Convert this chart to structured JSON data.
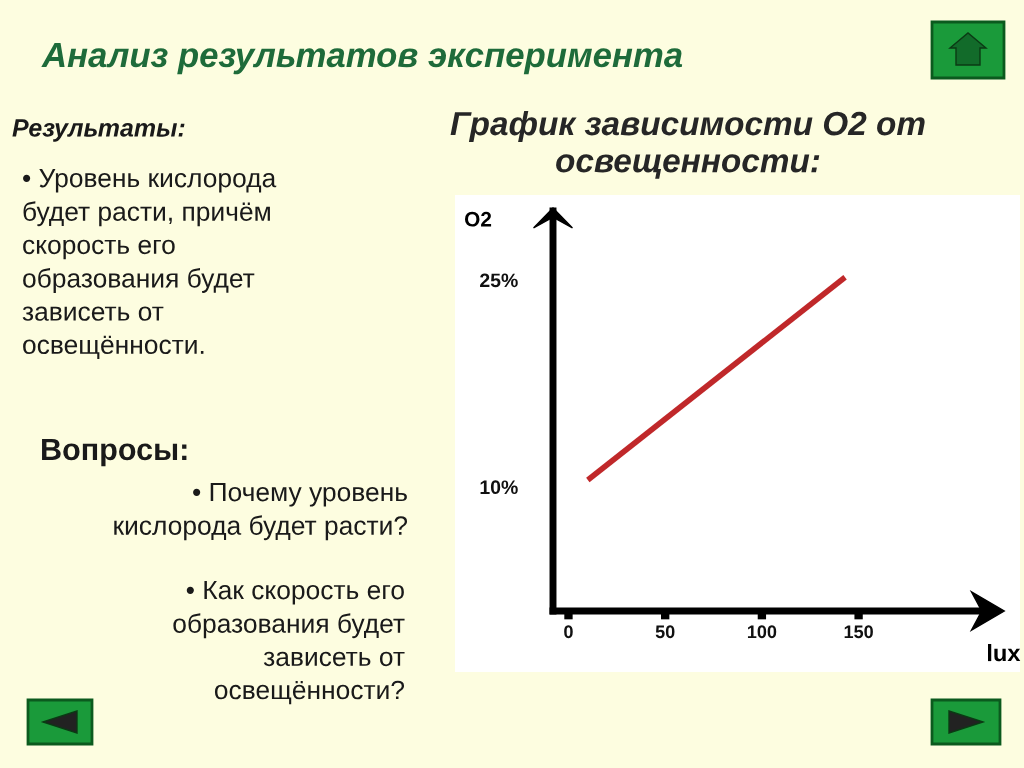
{
  "chart_data": {
    "type": "line",
    "title": "График зависимости O2 от освещенности:",
    "subtitle": "Анализ результатов эксперимента",
    "xlabel": "lux",
    "ylabel": "O2",
    "x": [
      10,
      143
    ],
    "series": [
      {
        "color": "#c0282a",
        "values": [
          10.5,
          25.2
        ]
      }
    ],
    "xlim": [
      -8,
      220
    ],
    "ylim": [
      1,
      30
    ],
    "xticks": [
      0,
      50,
      100,
      150
    ],
    "yticks": [
      {
        "value": 10,
        "label": "10%"
      },
      {
        "value": 25,
        "label": "25%"
      }
    ],
    "grid": false,
    "legend": false,
    "marker": "none",
    "line_style": "solid",
    "annotations": [
      "Результаты:",
      "• Уровень кислорода\nбудет расти, причём\nскорость его\nобразования будет\nзависеть от\nосвещённости.",
      "Вопросы:",
      "• Почему уровень\nкислорода будет расти?",
      "• Как скорость его\nобразования будет\nзависеть от\nосвещённости?"
    ]
  }
}
